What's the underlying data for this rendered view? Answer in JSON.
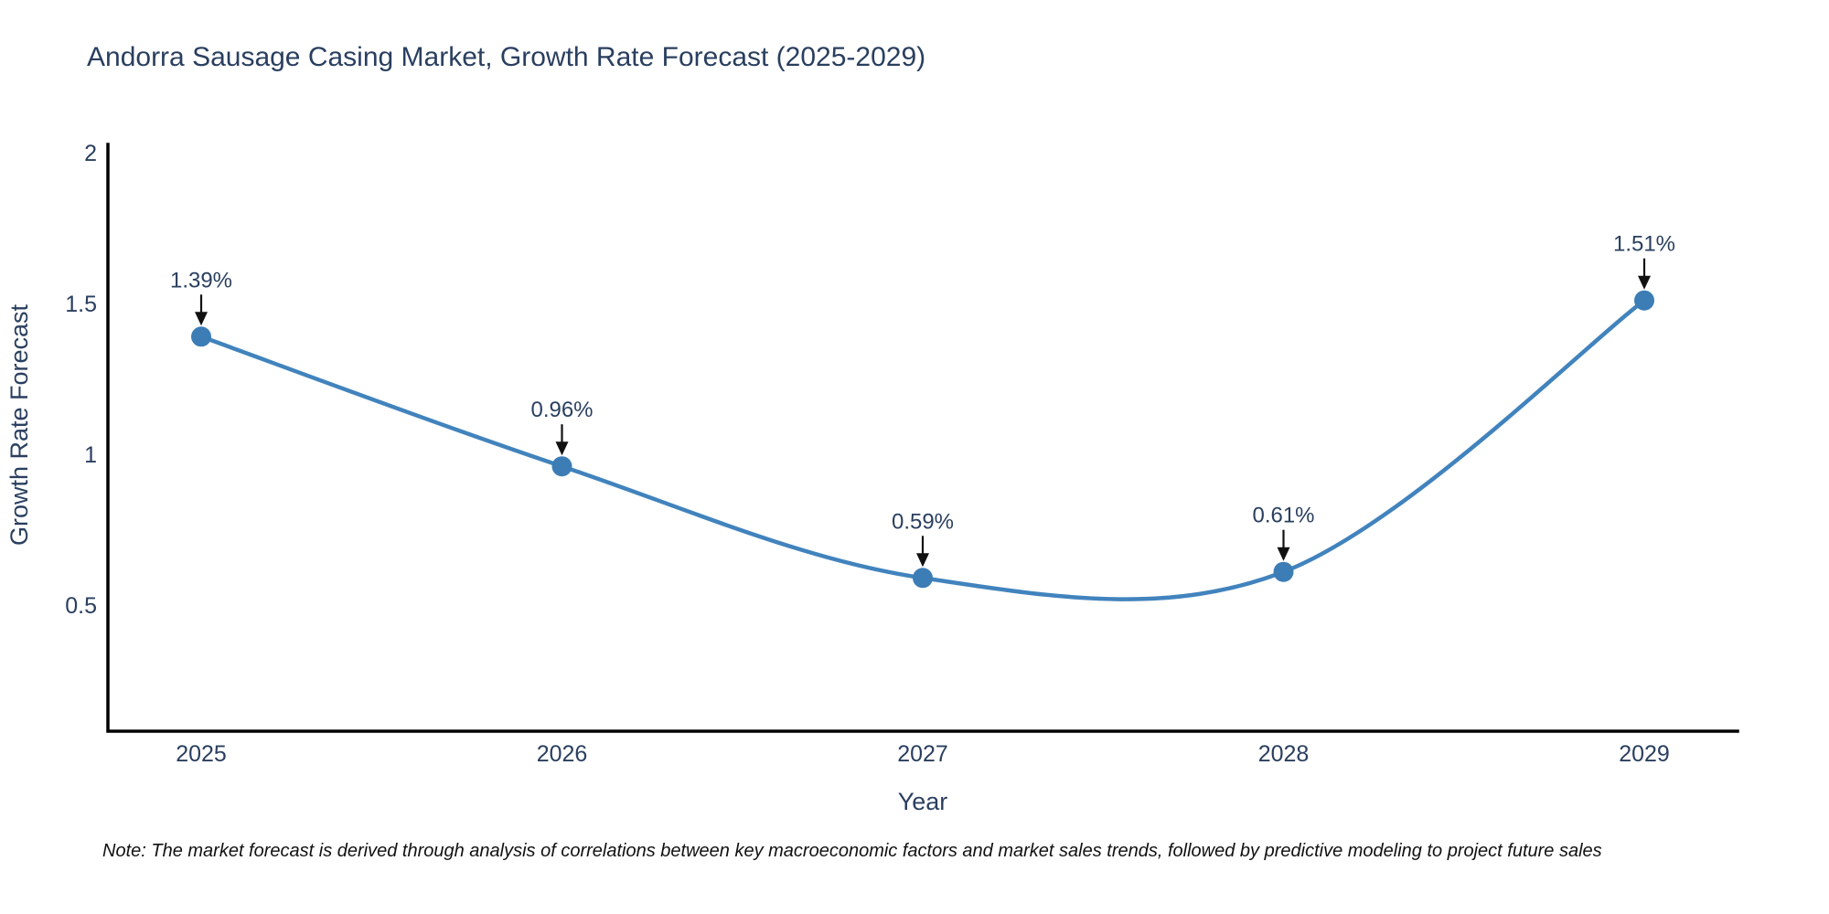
{
  "note": "Note: The market forecast is derived through analysis of correlations between key macroeconomic factors and market sales trends, followed by predictive modeling to project future sales",
  "chart_data": {
    "type": "line",
    "title": "Andorra Sausage Casing Market, Growth Rate Forecast (2025-2029)",
    "xlabel": "Year",
    "ylabel": "Growth Rate Forecast",
    "x": [
      "2025",
      "2026",
      "2027",
      "2028",
      "2029"
    ],
    "y": [
      1.39,
      0.96,
      0.59,
      0.61,
      1.51
    ],
    "point_labels": [
      "1.39%",
      "0.96%",
      "0.59%",
      "0.61%",
      "1.51%"
    ],
    "yticks": [
      2,
      1.5,
      1,
      0.5
    ],
    "ylim": [
      0.08,
      2.02
    ],
    "line_shape": "spline",
    "grid": false,
    "legend": "none",
    "colors": {
      "line": "#4183bd",
      "marker": "#3c7db6",
      "axis": "#000000",
      "tick_text": "#2a3f5f",
      "annotation_text": "#2a3f5f",
      "arrow": "#111111"
    }
  }
}
